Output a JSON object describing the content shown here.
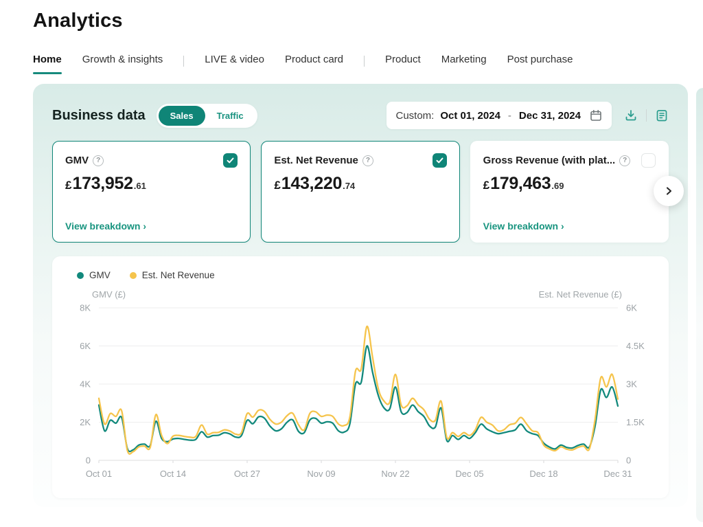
{
  "page": {
    "title": "Analytics"
  },
  "tabs": [
    {
      "label": "Home",
      "active": true
    },
    {
      "label": "Growth & insights",
      "active": false
    },
    {
      "label": "LIVE & video",
      "active": false
    },
    {
      "label": "Product card",
      "active": false
    },
    {
      "label": "Product",
      "active": false
    },
    {
      "label": "Marketing",
      "active": false
    },
    {
      "label": "Post purchase",
      "active": false
    }
  ],
  "panel": {
    "heading": "Business data",
    "toggle": {
      "options": [
        "Sales",
        "Traffic"
      ],
      "selected": "Sales"
    },
    "date_range": {
      "prefix": "Custom:",
      "start": "Oct 01, 2024",
      "separator": "-",
      "end": "Dec 31, 2024"
    },
    "cards": [
      {
        "title": "GMV",
        "checked": true,
        "currency": "£",
        "value_int": "173,952",
        "value_dec": ".61",
        "link": "View breakdown ›"
      },
      {
        "title": "Est. Net Revenue",
        "checked": true,
        "currency": "£",
        "value_int": "143,220",
        "value_dec": ".74",
        "link": ""
      },
      {
        "title": "Gross Revenue (with plat...",
        "checked": false,
        "currency": "£",
        "value_int": "179,463",
        "value_dec": ".69",
        "link": "View breakdown ›"
      }
    ]
  },
  "icons": {
    "date_picker": "calendar-icon",
    "export": "download-icon",
    "report": "clipboard-report-icon",
    "metric_help": "question-circle-icon",
    "carousel_next": "chevron-right-icon"
  },
  "colors": {
    "brand_teal": "#0f8577",
    "link_teal": "#18947f",
    "line_teal": "#12897c",
    "line_yellow": "#f5c44c"
  },
  "chart_data": {
    "type": "line",
    "title": "",
    "legend_position": "top-left",
    "grid": true,
    "left_axis": {
      "label": "GMV (£)",
      "ticks": [
        "8K",
        "6K",
        "4K",
        "2K",
        "0"
      ],
      "max": 8000,
      "min": 0
    },
    "right_axis": {
      "label": "Est. Net Revenue (£)",
      "ticks": [
        "6K",
        "4.5K",
        "3K",
        "1.5K",
        "0"
      ],
      "max": 6000,
      "min": 0
    },
    "x_tick_labels": [
      "Oct 01",
      "Oct 14",
      "Oct 27",
      "Nov 09",
      "Nov 22",
      "Dec 05",
      "Dec 18",
      "Dec 31"
    ],
    "x_tick_interval_days": 13,
    "x": [
      "Oct 01",
      "Oct 02",
      "Oct 03",
      "Oct 04",
      "Oct 05",
      "Oct 06",
      "Oct 07",
      "Oct 08",
      "Oct 09",
      "Oct 10",
      "Oct 11",
      "Oct 12",
      "Oct 13",
      "Oct 14",
      "Oct 15",
      "Oct 16",
      "Oct 17",
      "Oct 18",
      "Oct 19",
      "Oct 20",
      "Oct 21",
      "Oct 22",
      "Oct 23",
      "Oct 24",
      "Oct 25",
      "Oct 26",
      "Oct 27",
      "Oct 28",
      "Oct 29",
      "Oct 30",
      "Oct 31",
      "Nov 01",
      "Nov 02",
      "Nov 03",
      "Nov 04",
      "Nov 05",
      "Nov 06",
      "Nov 07",
      "Nov 08",
      "Nov 09",
      "Nov 10",
      "Nov 11",
      "Nov 12",
      "Nov 13",
      "Nov 14",
      "Nov 15",
      "Nov 16",
      "Nov 17",
      "Nov 18",
      "Nov 19",
      "Nov 20",
      "Nov 21",
      "Nov 22",
      "Nov 23",
      "Nov 24",
      "Nov 25",
      "Nov 26",
      "Nov 27",
      "Nov 28",
      "Nov 29",
      "Nov 30",
      "Dec 01",
      "Dec 02",
      "Dec 03",
      "Dec 04",
      "Dec 05",
      "Dec 06",
      "Dec 07",
      "Dec 08",
      "Dec 09",
      "Dec 10",
      "Dec 11",
      "Dec 12",
      "Dec 13",
      "Dec 14",
      "Dec 15",
      "Dec 16",
      "Dec 17",
      "Dec 18",
      "Dec 19",
      "Dec 20",
      "Dec 21",
      "Dec 22",
      "Dec 23",
      "Dec 24",
      "Dec 25",
      "Dec 26",
      "Dec 27",
      "Dec 28",
      "Dec 29",
      "Dec 30",
      "Dec 31"
    ],
    "series": [
      {
        "name": "GMV",
        "axis": "left",
        "color": "#12897c",
        "values": [
          2900,
          1550,
          2100,
          1950,
          2250,
          620,
          550,
          800,
          850,
          780,
          2050,
          1150,
          980,
          1120,
          1150,
          1100,
          1060,
          1100,
          1500,
          1220,
          1300,
          1320,
          1450,
          1380,
          1220,
          1300,
          2100,
          1920,
          2280,
          2220,
          1800,
          1550,
          1650,
          2000,
          2120,
          1520,
          1450,
          2120,
          2200,
          1950,
          2020,
          1950,
          1550,
          1480,
          1900,
          4000,
          4100,
          6000,
          4600,
          3400,
          2750,
          2700,
          3850,
          2550,
          2500,
          2900,
          2550,
          2300,
          1800,
          1750,
          2750,
          1050,
          1300,
          1100,
          1300,
          1150,
          1450,
          1900,
          1650,
          1500,
          1400,
          1450,
          1520,
          1600,
          1900,
          1550,
          1400,
          1300,
          900,
          700,
          600,
          800,
          680,
          650,
          780,
          850,
          700,
          1800,
          3700,
          3300,
          3850,
          2850
        ]
      },
      {
        "name": "Est. Net Revenue",
        "axis": "right",
        "color": "#f5c44c",
        "values": [
          2440,
          1430,
          1840,
          1730,
          1950,
          390,
          340,
          530,
          560,
          510,
          1800,
          980,
          660,
          950,
          980,
          940,
          910,
          940,
          1390,
          1030,
          1090,
          1100,
          1200,
          1150,
          1030,
          1090,
          1840,
          1700,
          1970,
          1930,
          1610,
          1430,
          1500,
          1760,
          1850,
          1400,
          1200,
          1850,
          1910,
          1730,
          1780,
          1730,
          1430,
          1370,
          1690,
          3510,
          3600,
          5270,
          4040,
          2810,
          2330,
          2290,
          3380,
          2180,
          2140,
          2440,
          2180,
          1990,
          1610,
          1580,
          2330,
          900,
          1090,
          940,
          1090,
          980,
          1200,
          1690,
          1500,
          1390,
          1160,
          1200,
          1400,
          1460,
          1690,
          1430,
          1160,
          1090,
          600,
          450,
          380,
          530,
          440,
          410,
          510,
          560,
          450,
          1610,
          3250,
          2890,
          3380,
          2410
        ]
      }
    ]
  }
}
